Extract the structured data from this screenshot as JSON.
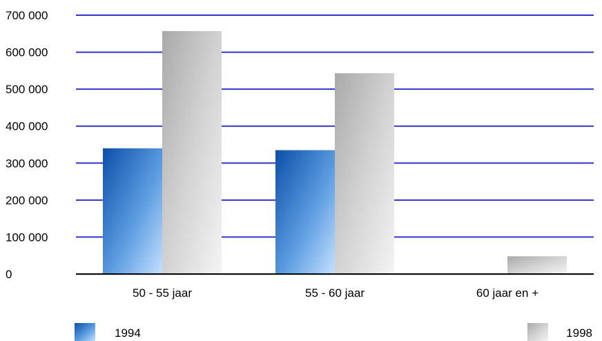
{
  "chart_data": {
    "type": "bar",
    "title": "",
    "xlabel": "",
    "ylabel": "",
    "categories": [
      "50 - 55 jaar",
      "55 - 60 jaar",
      "60 jaar en +"
    ],
    "series": [
      {
        "name": "1994",
        "values": [
          340000,
          335000,
          0
        ],
        "color": "#1f5fb5"
      },
      {
        "name": "1998",
        "values": [
          657000,
          543000,
          48000
        ],
        "color": "#c0c0c0"
      }
    ],
    "ylim": [
      0,
      700000
    ],
    "yticks": [
      0,
      100000,
      200000,
      300000,
      400000,
      500000,
      600000,
      700000
    ],
    "ytick_labels": [
      "0",
      "100 000",
      "200 000",
      "300 000",
      "400 000",
      "500 000",
      "600 000",
      "700 000"
    ],
    "grid": true,
    "grid_color": "#3333cc",
    "legend_placement": "bottom"
  }
}
